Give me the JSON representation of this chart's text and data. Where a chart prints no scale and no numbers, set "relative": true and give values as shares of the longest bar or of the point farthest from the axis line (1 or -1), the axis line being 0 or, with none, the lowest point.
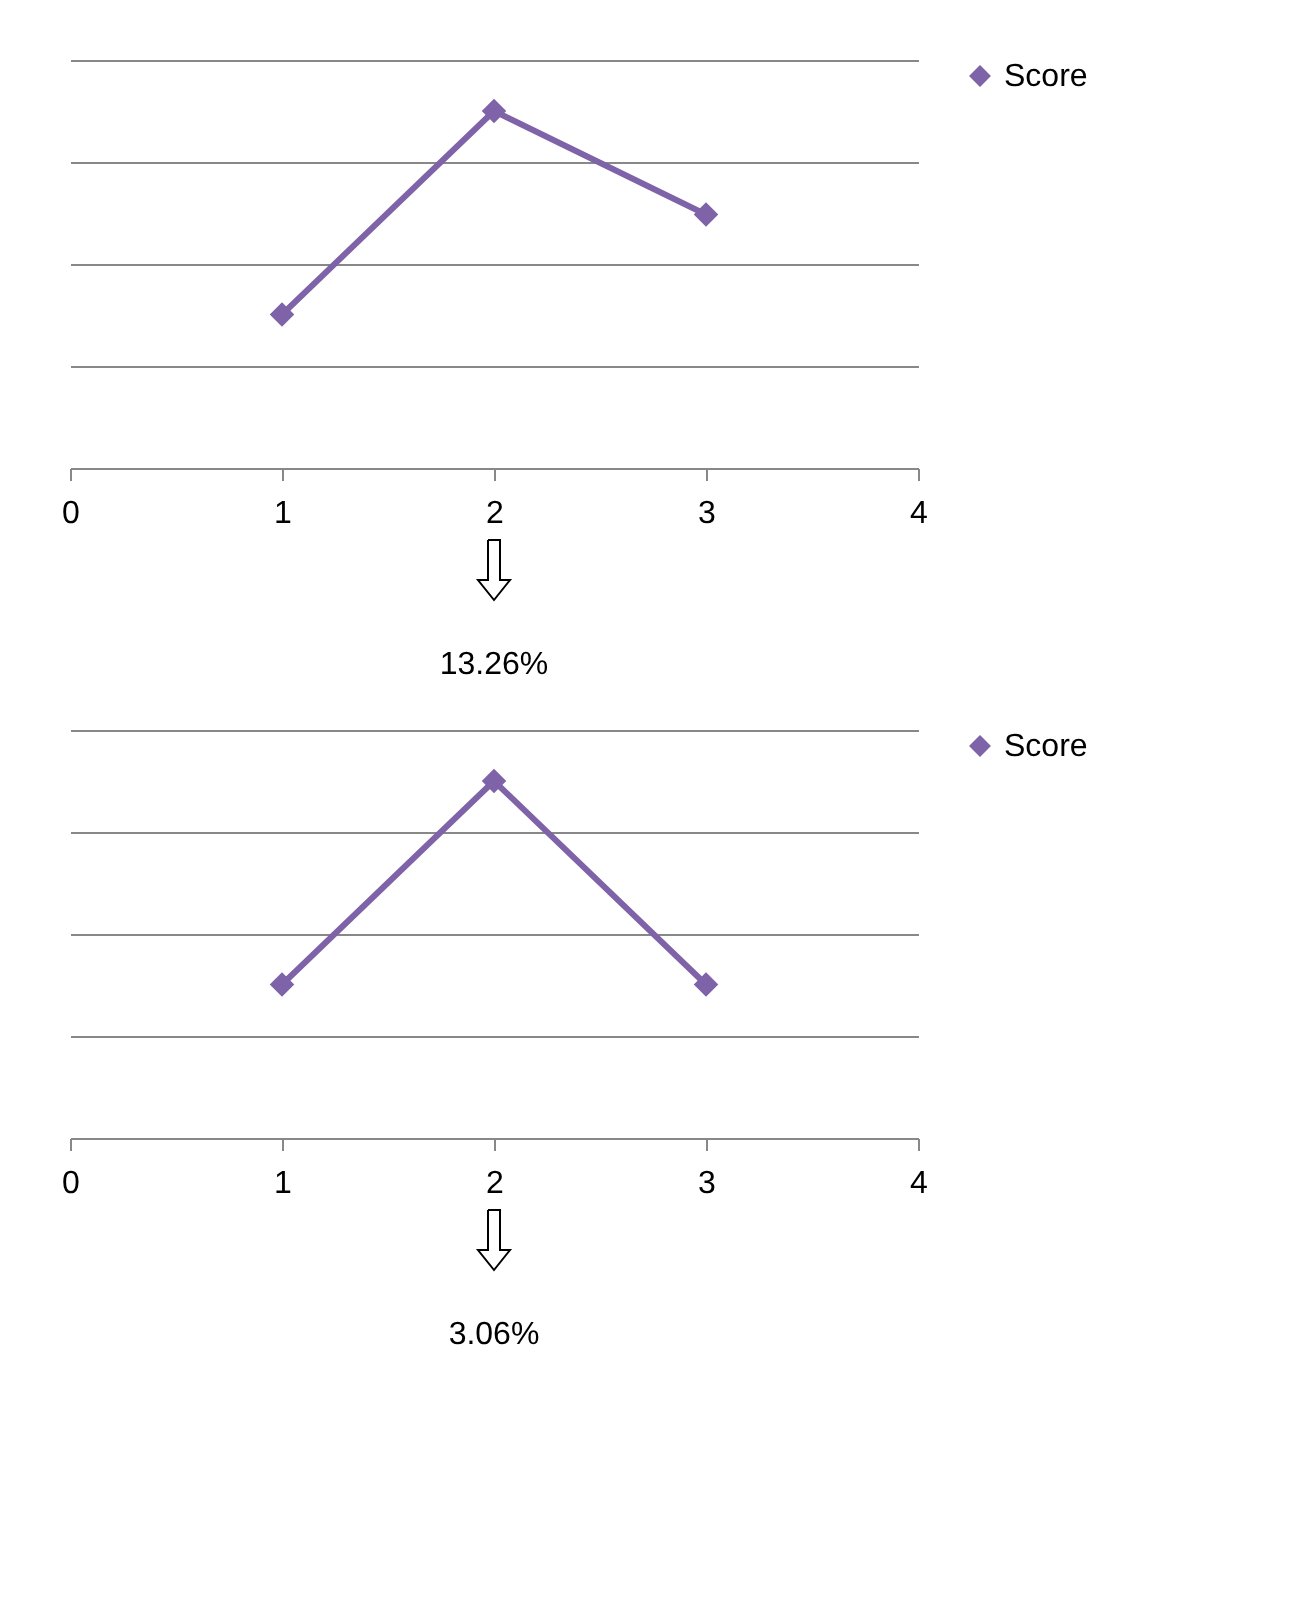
{
  "chart_data": [
    {
      "type": "line",
      "relative": true,
      "x": [
        1,
        2,
        3
      ],
      "xlim": [
        0,
        4
      ],
      "xticks": [
        0,
        1,
        2,
        3,
        4
      ],
      "tick_labels": "x",
      "grid": "y",
      "legend": "right",
      "marker": "diamond",
      "line_style": "solid",
      "series": [
        {
          "name": "Score",
          "color": "#7e63a8",
          "values": [
            0.43,
            1,
            0.71
          ]
        }
      ],
      "annotations": [
        "13.26%"
      ]
    },
    {
      "type": "line",
      "relative": true,
      "x": [
        1,
        2,
        3
      ],
      "xlim": [
        0,
        4
      ],
      "xticks": [
        0,
        1,
        2,
        3,
        4
      ],
      "tick_labels": "x",
      "grid": "y",
      "legend": "right",
      "marker": "diamond",
      "line_style": "solid",
      "series": [
        {
          "name": "Score",
          "color": "#7e63a8",
          "values": [
            0.43,
            1,
            0.43
          ]
        }
      ],
      "annotations": [
        "3.06%"
      ]
    }
  ]
}
